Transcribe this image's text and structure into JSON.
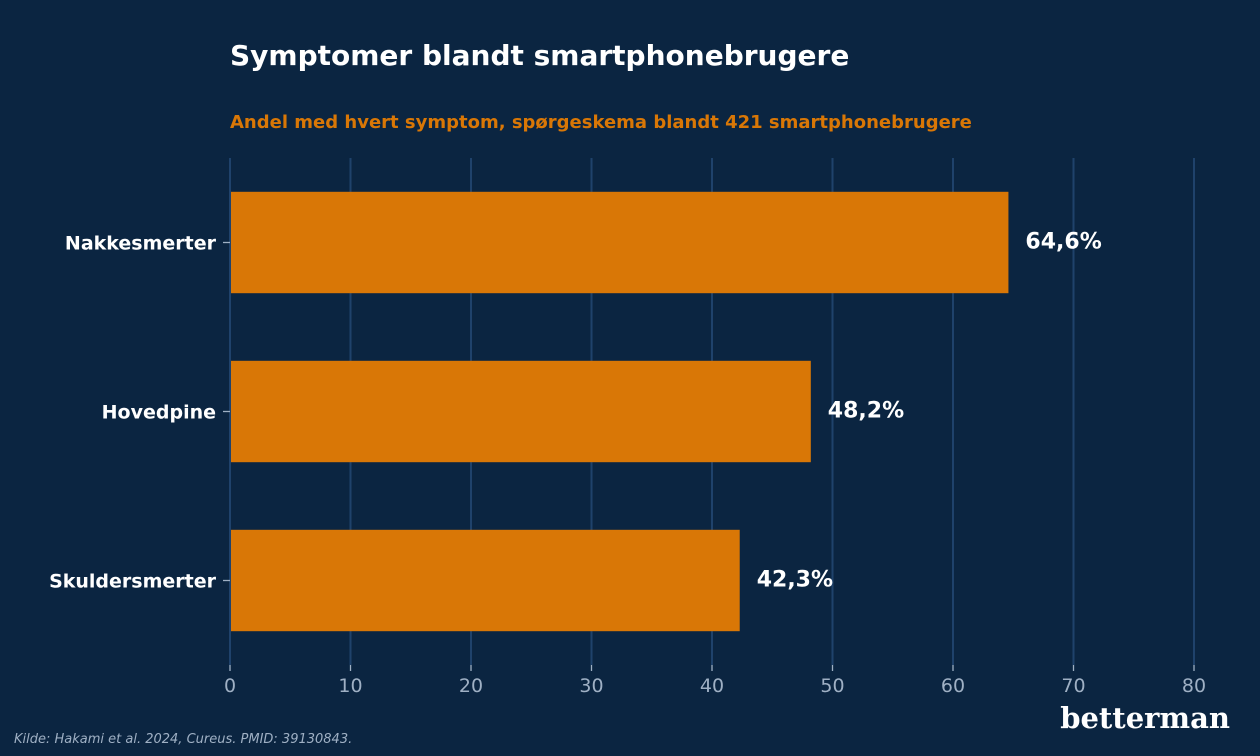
{
  "chart_data": {
    "type": "bar",
    "orientation": "horizontal",
    "title": "Symptomer blandt smartphonebrugere",
    "subtitle": "Andel med hvert symptom, spørgeskema blandt 421 smartphonebrugere",
    "categories": [
      "Nakkesmerter",
      "Hovedpine",
      "Skuldersmerter"
    ],
    "values": [
      64.6,
      48.2,
      42.3
    ],
    "value_labels": [
      "64,6%",
      "48,2%",
      "42,3%"
    ],
    "xlim": [
      0,
      80
    ],
    "xticks": [
      "0",
      "10",
      "20",
      "30",
      "40",
      "50",
      "60",
      "70",
      "80"
    ],
    "grid": "vertical",
    "xlabel": "",
    "ylabel": "",
    "colors": {
      "background": "#0b2541",
      "bar": "#d97706",
      "grid": "#1f426b",
      "title": "#ffffff",
      "subtitle": "#d97706",
      "tick": "#9fb0c4"
    }
  },
  "source": "Kilde: Hakami et al. 2024, Cureus. PMID: 39130843.",
  "brand": "betterman"
}
